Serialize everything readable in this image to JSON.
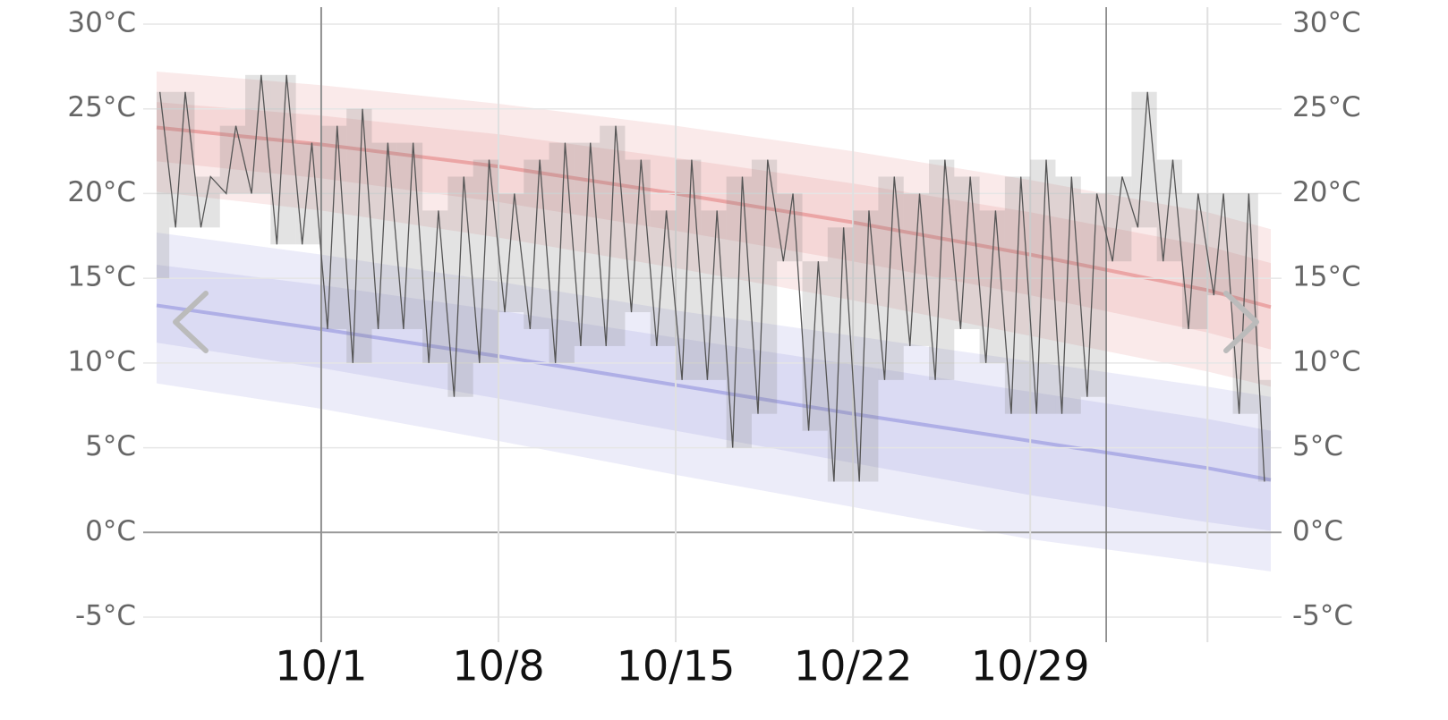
{
  "chart_data": {
    "type": "temperature-history",
    "xlim": [
      -6.5,
      37.5
    ],
    "ylim": [
      -5,
      30
    ],
    "yticks": [
      {
        "value": -5,
        "label": "-5°C"
      },
      {
        "value": 0,
        "label": "0°C"
      },
      {
        "value": 5,
        "label": "5°C"
      },
      {
        "value": 10,
        "label": "10°C"
      },
      {
        "value": 15,
        "label": "15°C"
      },
      {
        "value": 20,
        "label": "20°C"
      },
      {
        "value": 25,
        "label": "25°C"
      },
      {
        "value": 30,
        "label": "30°C"
      }
    ],
    "xticks": [
      {
        "value": 0,
        "label": "10/1"
      },
      {
        "value": 7,
        "label": "10/8"
      },
      {
        "value": 14,
        "label": "10/15"
      },
      {
        "value": 21,
        "label": "10/22"
      },
      {
        "value": 28,
        "label": "10/29"
      },
      {
        "value": 35,
        "label": null
      }
    ],
    "month_lines": [
      0,
      31
    ],
    "normals": {
      "x": [
        -6.5,
        0,
        7,
        14,
        21,
        28,
        35,
        37.5
      ],
      "high": {
        "color": "#dc5a5a",
        "mean": [
          23.9,
          22.9,
          21.6,
          20.0,
          18.3,
          16.4,
          14.3,
          13.3
        ],
        "inner_upper": [
          25.4,
          24.6,
          23.5,
          22.1,
          20.6,
          18.9,
          16.9,
          15.9
        ],
        "inner_lower": [
          21.9,
          20.9,
          19.5,
          17.8,
          16.0,
          14.0,
          11.8,
          10.8
        ],
        "outer_upper": [
          27.2,
          26.4,
          25.3,
          24.0,
          22.5,
          20.8,
          18.9,
          17.9
        ],
        "outer_lower": [
          20.1,
          19.0,
          17.4,
          15.6,
          13.7,
          11.6,
          9.5,
          8.6
        ]
      },
      "low": {
        "color": "#6e6ed2",
        "mean": [
          13.4,
          12.0,
          10.4,
          8.7,
          7.0,
          5.4,
          3.8,
          3.1
        ],
        "inner_upper": [
          15.8,
          14.6,
          13.1,
          11.5,
          9.9,
          8.3,
          6.7,
          6.0
        ],
        "inner_lower": [
          11.2,
          9.7,
          7.9,
          6.0,
          4.1,
          2.2,
          0.6,
          0.1
        ],
        "outer_upper": [
          17.7,
          16.4,
          14.8,
          13.1,
          11.6,
          10.1,
          8.6,
          8.0
        ],
        "outer_lower": [
          8.8,
          7.3,
          5.4,
          3.4,
          1.5,
          -0.4,
          -1.8,
          -2.3
        ]
      }
    },
    "daily": {
      "color": "#808080",
      "x": [
        -7,
        -6,
        -5,
        -4,
        -3,
        -2,
        -1,
        0,
        1,
        2,
        3,
        4,
        5,
        6,
        7,
        8,
        9,
        10,
        11,
        12,
        13,
        14,
        15,
        16,
        17,
        18,
        19,
        20,
        21,
        22,
        23,
        24,
        25,
        26,
        27,
        28,
        29,
        30,
        31,
        32,
        33,
        34,
        35,
        36,
        37
      ],
      "high": [
        26,
        26,
        21,
        24,
        27,
        27,
        23,
        24,
        25,
        23,
        23,
        19,
        21,
        22,
        20,
        22,
        23,
        23,
        24,
        22,
        19,
        22,
        19,
        21,
        22,
        20,
        16,
        18,
        19,
        21,
        20,
        22,
        21,
        19,
        21,
        22,
        21,
        20,
        21,
        26,
        22,
        20,
        20,
        20,
        9
      ],
      "low": [
        15,
        18,
        18,
        20,
        20,
        17,
        17,
        12,
        10,
        12,
        12,
        10,
        8,
        10,
        13,
        12,
        10,
        11,
        11,
        13,
        11,
        9,
        9,
        5,
        7,
        16,
        6,
        3,
        3,
        9,
        11,
        9,
        12,
        10,
        7,
        7,
        7,
        8,
        16,
        18,
        16,
        12,
        14,
        7,
        3
      ]
    }
  }
}
